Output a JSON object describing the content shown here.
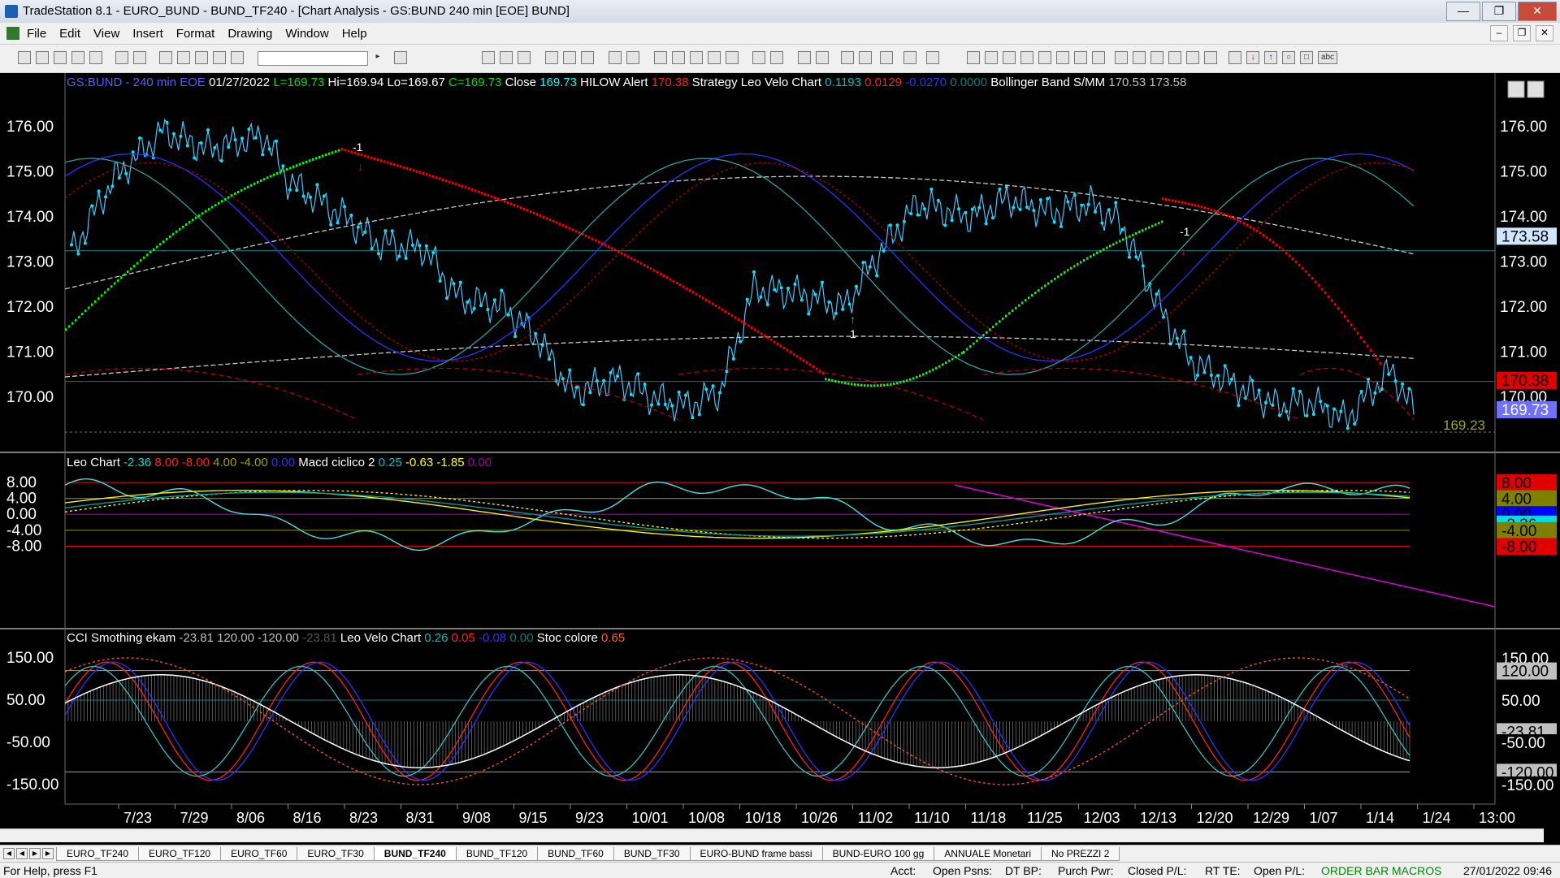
{
  "window": {
    "title": "TradeStation 8.1 - EURO_BUND - BUND_TF240 - [Chart Analysis - GS:BUND  240 min  [EOE] BUND]"
  },
  "menu": [
    "File",
    "Edit",
    "View",
    "Insert",
    "Format",
    "Drawing",
    "Window",
    "Help"
  ],
  "panel1": {
    "info": [
      {
        "text": "GS:BUND - 240 min",
        "color": "#5b5bff"
      },
      {
        "text": "EOE",
        "color": "#5b5bff"
      },
      {
        "text": "01/27/2022",
        "color": "#ffffff"
      },
      {
        "text": "L=169.73",
        "color": "#00e000"
      },
      {
        "text": "Hi=169.94",
        "color": "#ffffff"
      },
      {
        "text": "Lo=169.67",
        "color": "#ffffff"
      },
      {
        "text": "C=169.73",
        "color": "#00e000"
      },
      {
        "text": "Close",
        "color": "#ffffff"
      },
      {
        "text": "169.73",
        "color": "#00ffff"
      },
      {
        "text": "HILOW Alert",
        "color": "#ffffff"
      },
      {
        "text": "170.38",
        "color": "#ff2020"
      },
      {
        "text": "Strategy",
        "color": "#ffffff"
      },
      {
        "text": "Leo Velo Chart",
        "color": "#ffffff"
      },
      {
        "text": "0.1193",
        "color": "#00c0c0"
      },
      {
        "text": "0.0129",
        "color": "#ff2020"
      },
      {
        "text": "-0.0270",
        "color": "#3030ff"
      },
      {
        "text": "0.0000",
        "color": "#008080"
      },
      {
        "text": "Bollinger Band S/MM",
        "color": "#ffffff"
      },
      {
        "text": "170.53",
        "color": "#c0c0c0"
      },
      {
        "text": "173.58",
        "color": "#c0c0c0"
      }
    ],
    "ticks": [
      "176.00",
      "175.00",
      "174.00",
      "173.00",
      "172.00",
      "171.00",
      "170.00"
    ],
    "price_labels": [
      {
        "text": "173.58",
        "bg": "#cfe8ff",
        "color": "#000000",
        "value": 173.58
      },
      {
        "text": "170.38",
        "bg": "#e00000",
        "color": "#000000",
        "value": 170.38
      },
      {
        "text": "169.73",
        "bg": "#7070ff",
        "color": "#ffffff",
        "value": 169.73
      }
    ],
    "low_label": "169.23",
    "markers": [
      "-1",
      "1",
      "-1"
    ]
  },
  "panel2": {
    "info": [
      {
        "text": "Leo Chart",
        "color": "#ffffff"
      },
      {
        "text": "-2.36",
        "color": "#00e0e0"
      },
      {
        "text": "8.00",
        "color": "#ff2020"
      },
      {
        "text": "-8.00",
        "color": "#ff2020"
      },
      {
        "text": "4.00",
        "color": "#a0a000"
      },
      {
        "text": "-4.00",
        "color": "#a0a000"
      },
      {
        "text": "0.00",
        "color": "#3030ff"
      },
      {
        "text": "Macd ciclico 2",
        "color": "#ffffff"
      },
      {
        "text": "0.25",
        "color": "#00c0c0"
      },
      {
        "text": "-0.63",
        "color": "#ffff00"
      },
      {
        "text": "-1.85",
        "color": "#ffff00"
      },
      {
        "text": "0.00",
        "color": "#a000a0"
      }
    ],
    "ticks": [
      "8.00",
      "4.00",
      "0.00",
      "-4.00",
      "-8.00"
    ],
    "labels": [
      {
        "text": "8.00",
        "bg": "#e00000",
        "color": "#000000",
        "value": 8
      },
      {
        "text": "4.00",
        "bg": "#808000",
        "color": "#000000",
        "value": 4
      },
      {
        "text": "0.00",
        "bg": "#0000ff",
        "color": "#000000",
        "value": 0
      },
      {
        "text": "-2.36",
        "bg": "#00e0e0",
        "color": "#000000",
        "value": -2.36
      },
      {
        "text": "-4.00",
        "bg": "#808000",
        "color": "#000000",
        "value": -4
      },
      {
        "text": "-8.00",
        "bg": "#e00000",
        "color": "#000000",
        "value": -8
      }
    ]
  },
  "panel3": {
    "info": [
      {
        "text": "CCI Smothing ekam",
        "color": "#ffffff"
      },
      {
        "text": "-23.81",
        "color": "#c0c0c0"
      },
      {
        "text": "120.00",
        "color": "#c0c0c0"
      },
      {
        "text": "-120.00",
        "color": "#c0c0c0"
      },
      {
        "text": "-23.81",
        "color": "#555555"
      },
      {
        "text": "Leo Velo Chart",
        "color": "#ffffff"
      },
      {
        "text": "0.26",
        "color": "#00c0c0"
      },
      {
        "text": "0.05",
        "color": "#ff2020"
      },
      {
        "text": "-0.08",
        "color": "#3030ff"
      },
      {
        "text": "0.00",
        "color": "#008080"
      },
      {
        "text": "Stoc colore",
        "color": "#ffffff"
      },
      {
        "text": "0.65",
        "color": "#ff6000"
      }
    ],
    "ticks": [
      "150.00",
      "50.00",
      "-50.00",
      "-150.00"
    ],
    "labels": [
      {
        "text": "150.00",
        "bg": "#000000",
        "color": "#ffffff",
        "value": 150
      },
      {
        "text": "120.00",
        "bg": "#c0c0c0",
        "color": "#000000",
        "value": 120
      },
      {
        "text": "50.00",
        "bg": "#000000",
        "color": "#ffffff",
        "value": 50
      },
      {
        "text": "-23.81",
        "bg": "#c0c0c0",
        "color": "#000000",
        "value": -23.81
      },
      {
        "text": "-50.00",
        "bg": "#000000",
        "color": "#ffffff",
        "value": -50
      },
      {
        "text": "-120.00",
        "bg": "#c0c0c0",
        "color": "#000000",
        "value": -120
      },
      {
        "text": "-150.00",
        "bg": "#000000",
        "color": "#ffffff",
        "value": -150
      }
    ]
  },
  "xaxis": [
    "7/23",
    "7/29",
    "8/06",
    "8/16",
    "8/23",
    "8/31",
    "9/08",
    "9/15",
    "9/23",
    "10/01",
    "10/08",
    "10/18",
    "10/26",
    "11/02",
    "11/10",
    "11/18",
    "11/25",
    "12/03",
    "12/13",
    "12/20",
    "12/29",
    "1/07",
    "1/14",
    "1/24",
    "13:00"
  ],
  "tabs": [
    "EURO_TF240",
    "EURO_TF120",
    "EURO_TF60",
    "EURO_TF30",
    "BUND_TF240",
    "BUND_TF120",
    "BUND_TF60",
    "BUND_TF30",
    "EURO-BUND frame bassi",
    "BUND-EURO 100 gg",
    "ANNUALE Monetari",
    "No PREZZI 2"
  ],
  "active_tab": "BUND_TF240",
  "status": {
    "help": "For Help, press F1",
    "acct": "Acct:",
    "open_psns": "Open Psns:",
    "dt_bp": "DT BP:",
    "purch_pwr": "Purch Pwr:",
    "closed_pl": "Closed P/L:",
    "rt_te": "RT TE:",
    "open_pl": "Open P/L:",
    "order_bar": "ORDER BAR",
    "macros": "MACROS",
    "datetime": "27/01/2022 09:46"
  }
}
